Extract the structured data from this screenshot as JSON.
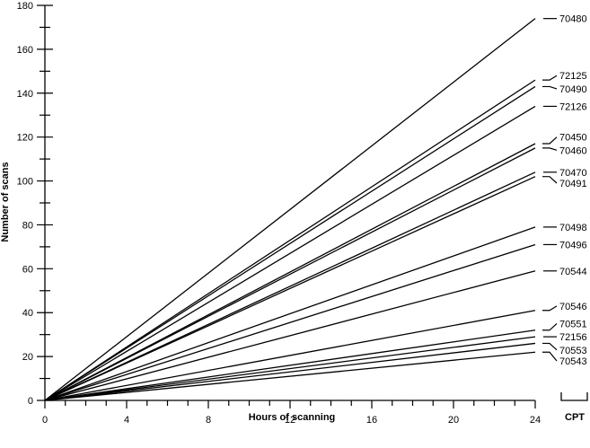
{
  "chart_data": {
    "type": "line",
    "title": "",
    "xlabel": "Hours of scanning",
    "ylabel": "Number of scans",
    "legend_title": "CPT",
    "xlim": [
      0,
      24
    ],
    "ylim": [
      0,
      180
    ],
    "x_ticks": [
      0,
      4,
      8,
      12,
      16,
      20,
      24
    ],
    "y_ticks": [
      0,
      20,
      40,
      60,
      80,
      100,
      120,
      140,
      160,
      180
    ],
    "grid": false,
    "legend_placement": "right (labels at line ends)",
    "series": [
      {
        "name": "70480",
        "x": [
          0,
          24
        ],
        "y": [
          0,
          174
        ],
        "label_y": 174
      },
      {
        "name": "72125",
        "x": [
          0,
          24
        ],
        "y": [
          0,
          146
        ],
        "label_y": 148
      },
      {
        "name": "70490",
        "x": [
          0,
          24
        ],
        "y": [
          0,
          143
        ],
        "label_y": 142
      },
      {
        "name": "72126",
        "x": [
          0,
          24
        ],
        "y": [
          0,
          134
        ],
        "label_y": 134
      },
      {
        "name": "70450",
        "x": [
          0,
          24
        ],
        "y": [
          0,
          117
        ],
        "label_y": 120
      },
      {
        "name": "70460",
        "x": [
          0,
          24
        ],
        "y": [
          0,
          115
        ],
        "label_y": 114
      },
      {
        "name": "70470",
        "x": [
          0,
          24
        ],
        "y": [
          0,
          104
        ],
        "label_y": 104
      },
      {
        "name": "70491",
        "x": [
          0,
          24
        ],
        "y": [
          0,
          102
        ],
        "label_y": 99
      },
      {
        "name": "70498",
        "x": [
          0,
          24
        ],
        "y": [
          0,
          79
        ],
        "label_y": 79
      },
      {
        "name": "70496",
        "x": [
          0,
          24
        ],
        "y": [
          0,
          71
        ],
        "label_y": 71
      },
      {
        "name": "70544",
        "x": [
          0,
          24
        ],
        "y": [
          0,
          59
        ],
        "label_y": 59
      },
      {
        "name": "70546",
        "x": [
          0,
          24
        ],
        "y": [
          0,
          41
        ],
        "label_y": 43
      },
      {
        "name": "70551",
        "x": [
          0,
          24
        ],
        "y": [
          0,
          32
        ],
        "label_y": 35
      },
      {
        "name": "72156",
        "x": [
          0,
          24
        ],
        "y": [
          0,
          29
        ],
        "label_y": 29
      },
      {
        "name": "70553",
        "x": [
          0,
          24
        ],
        "y": [
          0,
          26
        ],
        "label_y": 23
      },
      {
        "name": "70543",
        "x": [
          0,
          24
        ],
        "y": [
          0,
          22
        ],
        "label_y": 18
      }
    ]
  }
}
